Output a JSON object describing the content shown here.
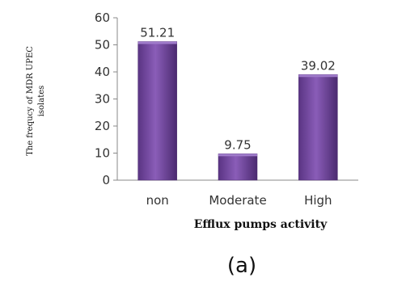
{
  "chart_data": {
    "type": "bar",
    "categories": [
      "non",
      "Moderate",
      "High"
    ],
    "values": [
      51.21,
      9.75,
      39.02
    ],
    "data_labels": [
      "51.21",
      "9.75",
      "39.02"
    ],
    "xlabel": "Efflux pumps activity",
    "ylabel_lines": [
      "The frequcy of MDR UPEC",
      "isolates"
    ],
    "ylim": [
      0,
      60
    ],
    "yticks": [
      0,
      10,
      20,
      30,
      40,
      50,
      60
    ],
    "grid": false,
    "bar_color": "#7b4fa6",
    "panel_label": "(a)"
  }
}
